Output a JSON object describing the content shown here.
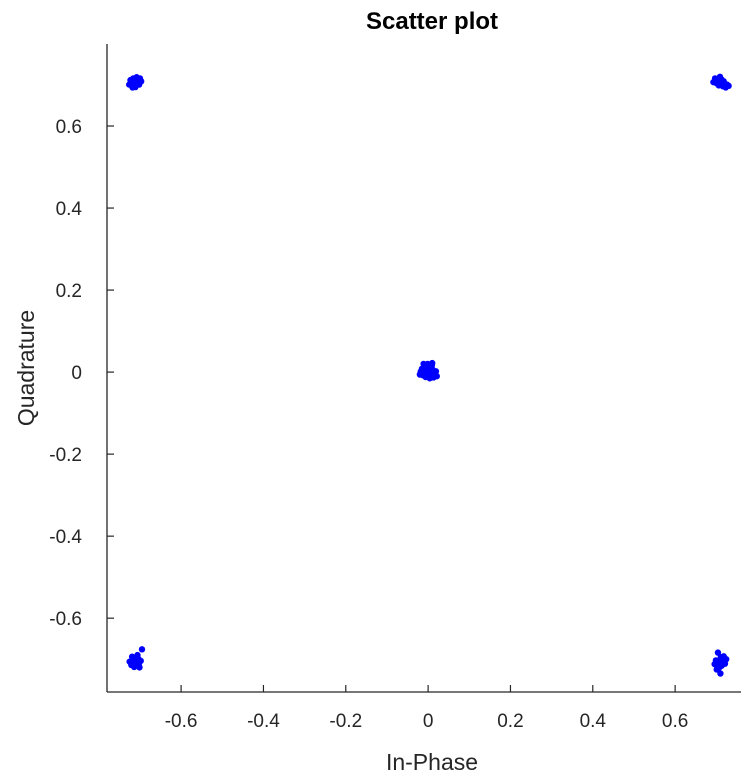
{
  "chart_data": {
    "type": "scatter",
    "title": "Scatter plot",
    "xlabel": "In-Phase",
    "ylabel": "Quadrature",
    "xlim": [
      -0.78,
      0.76
    ],
    "ylim": [
      -0.78,
      0.8
    ],
    "xticks": [
      {
        "value": -0.6,
        "label": "-0.6"
      },
      {
        "value": -0.4,
        "label": "-0.4"
      },
      {
        "value": -0.2,
        "label": "-0.2"
      },
      {
        "value": 0,
        "label": "0"
      },
      {
        "value": 0.2,
        "label": "0.2"
      },
      {
        "value": 0.4,
        "label": "0.4"
      },
      {
        "value": 0.6,
        "label": "0.6"
      }
    ],
    "yticks": [
      {
        "value": 0.6,
        "label": "0.6"
      },
      {
        "value": 0.4,
        "label": "0.4"
      },
      {
        "value": 0.2,
        "label": "0.2"
      },
      {
        "value": 0,
        "label": "0"
      },
      {
        "value": -0.2,
        "label": "-0.2"
      },
      {
        "value": -0.4,
        "label": "-0.4"
      },
      {
        "value": -0.6,
        "label": "-0.6"
      }
    ],
    "grid": false,
    "marker_color": "#0000ff",
    "series": [
      {
        "points": [
          {
            "x": -0.713,
            "y": 0.708
          },
          {
            "x": -0.706,
            "y": 0.713
          },
          {
            "x": -0.719,
            "y": 0.703
          },
          {
            "x": -0.702,
            "y": 0.701
          },
          {
            "x": -0.711,
            "y": 0.695
          },
          {
            "x": -0.723,
            "y": 0.712
          },
          {
            "x": -0.697,
            "y": 0.709
          },
          {
            "x": -0.708,
            "y": 0.719
          },
          {
            "x": -0.716,
            "y": 0.716
          },
          {
            "x": -0.7,
            "y": 0.716
          },
          {
            "x": -0.726,
            "y": 0.701
          },
          {
            "x": -0.712,
            "y": 0.7
          },
          {
            "x": -0.704,
            "y": 0.706
          },
          {
            "x": -0.718,
            "y": 0.694
          },
          {
            "x": 0.703,
            "y": 0.713
          },
          {
            "x": 0.711,
            "y": 0.706
          },
          {
            "x": 0.72,
            "y": 0.702
          },
          {
            "x": 0.697,
            "y": 0.716
          },
          {
            "x": 0.709,
            "y": 0.72
          },
          {
            "x": 0.716,
            "y": 0.697
          },
          {
            "x": 0.726,
            "y": 0.701
          },
          {
            "x": 0.706,
            "y": 0.699
          },
          {
            "x": 0.713,
            "y": 0.713
          },
          {
            "x": 0.693,
            "y": 0.707
          },
          {
            "x": 0.718,
            "y": 0.709
          },
          {
            "x": 0.723,
            "y": 0.694
          },
          {
            "x": 0.701,
            "y": 0.704
          },
          {
            "x": 0.73,
            "y": 0.698
          },
          {
            "x": -0.004,
            "y": 0.004
          },
          {
            "x": 0.006,
            "y": -0.004
          },
          {
            "x": -0.01,
            "y": -0.002
          },
          {
            "x": 0.011,
            "y": 0.006
          },
          {
            "x": 0.001,
            "y": 0.012
          },
          {
            "x": -0.006,
            "y": -0.012
          },
          {
            "x": 0.016,
            "y": -0.006
          },
          {
            "x": -0.015,
            "y": 0.008
          },
          {
            "x": 0.004,
            "y": -0.015
          },
          {
            "x": -0.001,
            "y": 0.02
          },
          {
            "x": 0.009,
            "y": 0.016
          },
          {
            "x": -0.012,
            "y": -0.008
          },
          {
            "x": 0.019,
            "y": 0.002
          },
          {
            "x": -0.018,
            "y": 0.001
          },
          {
            "x": 0.0,
            "y": -0.002
          },
          {
            "x": 0.013,
            "y": -0.013
          },
          {
            "x": -0.008,
            "y": 0.015
          },
          {
            "x": 0.003,
            "y": 0.007
          },
          {
            "x": -0.003,
            "y": -0.006
          },
          {
            "x": 0.007,
            "y": 0.001
          },
          {
            "x": 0.021,
            "y": -0.01
          },
          {
            "x": -0.02,
            "y": -0.006
          },
          {
            "x": 0.01,
            "y": 0.022
          },
          {
            "x": -0.011,
            "y": 0.02
          },
          {
            "x": -0.709,
            "y": -0.708
          },
          {
            "x": -0.716,
            "y": -0.702
          },
          {
            "x": -0.703,
            "y": -0.713
          },
          {
            "x": -0.721,
            "y": -0.714
          },
          {
            "x": -0.712,
            "y": -0.696
          },
          {
            "x": -0.698,
            "y": -0.704
          },
          {
            "x": -0.706,
            "y": -0.69
          },
          {
            "x": -0.725,
            "y": -0.706
          },
          {
            "x": -0.714,
            "y": -0.719
          },
          {
            "x": -0.701,
            "y": -0.72
          },
          {
            "x": -0.719,
            "y": -0.694
          },
          {
            "x": -0.704,
            "y": -0.699
          },
          {
            "x": -0.695,
            "y": -0.676
          },
          {
            "x": -0.711,
            "y": -0.712
          },
          {
            "x": 0.708,
            "y": -0.708
          },
          {
            "x": 0.716,
            "y": -0.702
          },
          {
            "x": 0.703,
            "y": -0.715
          },
          {
            "x": 0.721,
            "y": -0.711
          },
          {
            "x": 0.711,
            "y": -0.695
          },
          {
            "x": 0.699,
            "y": -0.703
          },
          {
            "x": 0.706,
            "y": -0.722
          },
          {
            "x": 0.724,
            "y": -0.7
          },
          {
            "x": 0.713,
            "y": -0.716
          },
          {
            "x": 0.696,
            "y": -0.712
          },
          {
            "x": 0.718,
            "y": -0.693
          },
          {
            "x": 0.704,
            "y": -0.684
          },
          {
            "x": 0.71,
            "y": -0.735
          },
          {
            "x": 0.701,
            "y": -0.725
          }
        ]
      }
    ]
  }
}
